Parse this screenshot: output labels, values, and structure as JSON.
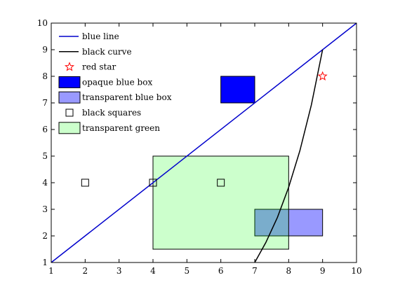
{
  "chart_data": {
    "type": "line",
    "xlim": [
      1,
      10
    ],
    "ylim": [
      1,
      10
    ],
    "xticks": [
      1,
      2,
      3,
      4,
      5,
      6,
      7,
      8,
      9,
      10
    ],
    "yticks": [
      1,
      2,
      3,
      4,
      5,
      6,
      7,
      8,
      9,
      10
    ],
    "xtick_labels": [
      "1",
      "2",
      "3",
      "4",
      "5",
      "6",
      "7",
      "8",
      "9",
      "10"
    ],
    "ytick_labels": [
      "1",
      "2",
      "3",
      "4",
      "5",
      "6",
      "7",
      "8",
      "9",
      "10"
    ],
    "grid": false,
    "legend_position": "top-left",
    "series": [
      {
        "name": "blue line",
        "kind": "line",
        "color": "#0000cc",
        "x": [
          1,
          10
        ],
        "y": [
          1,
          10
        ]
      },
      {
        "name": "black curve",
        "kind": "line",
        "color": "#000000",
        "x": [
          7.0,
          7.33,
          7.67,
          8.0,
          8.33,
          8.67,
          9.0
        ],
        "y": [
          1.0,
          1.76,
          2.7,
          3.83,
          5.2,
          6.93,
          9.0
        ]
      },
      {
        "name": "red star",
        "kind": "marker",
        "marker": "star",
        "color": "#ff0000",
        "points": [
          [
            9,
            8
          ]
        ]
      },
      {
        "name": "opaque blue box",
        "kind": "rect",
        "fill": "#0000ff",
        "opacity": 1.0,
        "x0": 6,
        "x1": 7,
        "y0": 7,
        "y1": 8
      },
      {
        "name": "transparent blue box",
        "kind": "rect",
        "fill": "#0000ff",
        "opacity": 0.4,
        "x0": 7,
        "x1": 9,
        "y0": 2,
        "y1": 3
      },
      {
        "name": "black squares",
        "kind": "marker",
        "marker": "square",
        "color": "#000000",
        "points": [
          [
            2,
            4
          ],
          [
            4,
            4
          ],
          [
            6,
            4
          ]
        ]
      },
      {
        "name": "transparent green",
        "kind": "rect",
        "fill": "#00ff00",
        "opacity": 0.2,
        "x0": 4,
        "x1": 8,
        "y0": 1.5,
        "y1": 5
      }
    ]
  }
}
